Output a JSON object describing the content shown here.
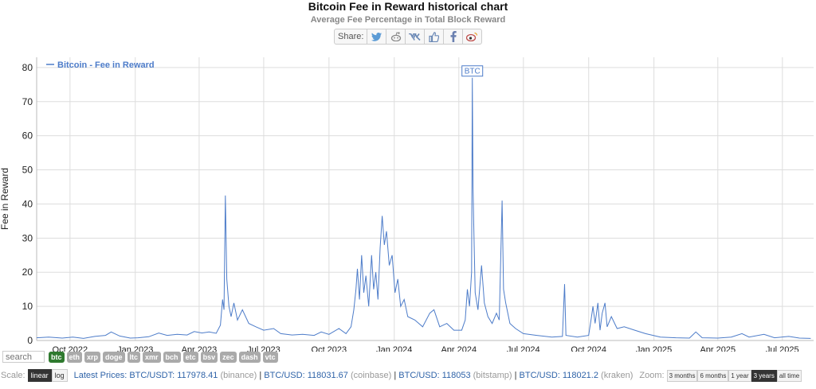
{
  "header": {
    "title": "Bitcoin Fee in Reward historical chart",
    "subtitle": "Average Fee Percentage in Total Block Reward",
    "share_label": "Share:",
    "share_icons": [
      "twitter-icon",
      "reddit-icon",
      "vk-icon",
      "like-icon",
      "facebook-icon",
      "weibo-icon"
    ]
  },
  "chart_data": {
    "type": "line",
    "ylabel": "Fee in Reward",
    "xlabel": "",
    "ylim": [
      0,
      83
    ],
    "yticks": [
      0,
      10,
      20,
      30,
      40,
      50,
      60,
      70,
      80
    ],
    "xticks": [
      "Oct 2022",
      "Jan 2023",
      "Apr 2023",
      "Jul 2023",
      "Oct 2023",
      "Jan 2024",
      "Apr 2024",
      "Jul 2024",
      "Oct 2024",
      "Jan 2025",
      "Apr 2025",
      "Jul 2025"
    ],
    "grid": true,
    "legend": "top-left",
    "annotation": "BTC",
    "color": "#4d7cc9",
    "series": [
      {
        "name": "Bitcoin - Fee in Reward",
        "points": [
          [
            "2022-08-15",
            0.8
          ],
          [
            "2022-09-01",
            1.0
          ],
          [
            "2022-09-20",
            0.7
          ],
          [
            "2022-10-05",
            1.0
          ],
          [
            "2022-10-20",
            0.6
          ],
          [
            "2022-11-05",
            1.2
          ],
          [
            "2022-11-20",
            1.5
          ],
          [
            "2022-11-28",
            2.5
          ],
          [
            "2022-12-10",
            1.3
          ],
          [
            "2022-12-25",
            0.7
          ],
          [
            "2023-01-05",
            0.8
          ],
          [
            "2023-01-20",
            1.1
          ],
          [
            "2023-02-03",
            2.2
          ],
          [
            "2023-02-15",
            1.5
          ],
          [
            "2023-03-01",
            1.8
          ],
          [
            "2023-03-15",
            1.6
          ],
          [
            "2023-03-25",
            2.6
          ],
          [
            "2023-04-05",
            2.2
          ],
          [
            "2023-04-15",
            2.5
          ],
          [
            "2023-04-25",
            2.1
          ],
          [
            "2023-05-01",
            4.5
          ],
          [
            "2023-05-04",
            12.0
          ],
          [
            "2023-05-06",
            9.0
          ],
          [
            "2023-05-08",
            42.5
          ],
          [
            "2023-05-10",
            18.0
          ],
          [
            "2023-05-13",
            10.0
          ],
          [
            "2023-05-16",
            7.0
          ],
          [
            "2023-05-20",
            11.0
          ],
          [
            "2023-05-25",
            6.0
          ],
          [
            "2023-06-01",
            9.0
          ],
          [
            "2023-06-10",
            5.0
          ],
          [
            "2023-06-20",
            4.0
          ],
          [
            "2023-07-01",
            3.0
          ],
          [
            "2023-07-15",
            3.5
          ],
          [
            "2023-07-25",
            2.0
          ],
          [
            "2023-08-10",
            1.6
          ],
          [
            "2023-08-25",
            1.8
          ],
          [
            "2023-09-10",
            1.5
          ],
          [
            "2023-09-20",
            2.5
          ],
          [
            "2023-10-01",
            1.8
          ],
          [
            "2023-10-15",
            3.5
          ],
          [
            "2023-10-25",
            2.0
          ],
          [
            "2023-11-01",
            4.0
          ],
          [
            "2023-11-05",
            9.0
          ],
          [
            "2023-11-08",
            15.0
          ],
          [
            "2023-11-10",
            21.0
          ],
          [
            "2023-11-13",
            12.0
          ],
          [
            "2023-11-16",
            25.0
          ],
          [
            "2023-11-19",
            14.0
          ],
          [
            "2023-11-22",
            19.0
          ],
          [
            "2023-11-26",
            10.0
          ],
          [
            "2023-11-30",
            25.0
          ],
          [
            "2023-12-03",
            15.0
          ],
          [
            "2023-12-06",
            20.0
          ],
          [
            "2023-12-09",
            12.0
          ],
          [
            "2023-12-12",
            27.0
          ],
          [
            "2023-12-15",
            36.5
          ],
          [
            "2023-12-18",
            28.0
          ],
          [
            "2023-12-21",
            32.0
          ],
          [
            "2023-12-25",
            22.0
          ],
          [
            "2023-12-29",
            25.0
          ],
          [
            "2024-01-02",
            14.0
          ],
          [
            "2024-01-06",
            18.0
          ],
          [
            "2024-01-10",
            10.0
          ],
          [
            "2024-01-15",
            12.0
          ],
          [
            "2024-01-20",
            7.0
          ],
          [
            "2024-01-30",
            6.0
          ],
          [
            "2024-02-10",
            4.0
          ],
          [
            "2024-02-20",
            8.0
          ],
          [
            "2024-02-26",
            9.0
          ],
          [
            "2024-03-05",
            4.0
          ],
          [
            "2024-03-15",
            5.0
          ],
          [
            "2024-03-25",
            3.0
          ],
          [
            "2024-04-05",
            3.0
          ],
          [
            "2024-04-10",
            6.0
          ],
          [
            "2024-04-13",
            15.0
          ],
          [
            "2024-04-16",
            10.0
          ],
          [
            "2024-04-19",
            20.0
          ],
          [
            "2024-04-20",
            77.0
          ],
          [
            "2024-04-21",
            45.0
          ],
          [
            "2024-04-22",
            34.0
          ],
          [
            "2024-04-24",
            14.0
          ],
          [
            "2024-04-28",
            9.0
          ],
          [
            "2024-05-03",
            22.0
          ],
          [
            "2024-05-07",
            11.0
          ],
          [
            "2024-05-12",
            7.0
          ],
          [
            "2024-05-18",
            5.0
          ],
          [
            "2024-05-24",
            8.0
          ],
          [
            "2024-05-28",
            6.0
          ],
          [
            "2024-06-01",
            41.0
          ],
          [
            "2024-06-03",
            15.0
          ],
          [
            "2024-06-06",
            11.0
          ],
          [
            "2024-06-12",
            5.0
          ],
          [
            "2024-06-20",
            3.5
          ],
          [
            "2024-07-01",
            2.0
          ],
          [
            "2024-07-20",
            1.5
          ],
          [
            "2024-08-10",
            1.0
          ],
          [
            "2024-08-25",
            1.2
          ],
          [
            "2024-08-28",
            16.5
          ],
          [
            "2024-08-30",
            1.5
          ],
          [
            "2024-09-15",
            1.0
          ],
          [
            "2024-10-01",
            1.5
          ],
          [
            "2024-10-05",
            7.0
          ],
          [
            "2024-10-07",
            10.0
          ],
          [
            "2024-10-10",
            5.0
          ],
          [
            "2024-10-14",
            11.0
          ],
          [
            "2024-10-17",
            3.0
          ],
          [
            "2024-10-20",
            8.0
          ],
          [
            "2024-10-24",
            11.0
          ],
          [
            "2024-10-27",
            4.0
          ],
          [
            "2024-11-02",
            7.0
          ],
          [
            "2024-11-10",
            3.5
          ],
          [
            "2024-11-20",
            4.0
          ],
          [
            "2024-12-05",
            3.0
          ],
          [
            "2024-12-20",
            2.0
          ],
          [
            "2025-01-10",
            1.0
          ],
          [
            "2025-02-01",
            0.8
          ],
          [
            "2025-02-20",
            0.7
          ],
          [
            "2025-03-01",
            2.5
          ],
          [
            "2025-03-10",
            0.8
          ],
          [
            "2025-04-01",
            0.7
          ],
          [
            "2025-04-20",
            1.0
          ],
          [
            "2025-05-05",
            2.0
          ],
          [
            "2025-05-15",
            1.0
          ],
          [
            "2025-06-05",
            1.8
          ],
          [
            "2025-06-20",
            0.8
          ],
          [
            "2025-07-10",
            1.2
          ],
          [
            "2025-07-25",
            0.7
          ],
          [
            "2025-08-10",
            0.6
          ]
        ]
      }
    ]
  },
  "controls": {
    "search_placeholder": "search",
    "coins": [
      "btc",
      "eth",
      "xrp",
      "doge",
      "ltc",
      "xmr",
      "bch",
      "etc",
      "bsv",
      "zec",
      "dash",
      "vtc"
    ],
    "active_coin": "btc",
    "scale_label": "Scale:",
    "scale_linear": "linear",
    "scale_log": "log",
    "prices_label": "Latest Prices:",
    "prices": [
      {
        "pair": "BTC/USDT:",
        "value": "117978.41",
        "source": "(binance)"
      },
      {
        "pair": "BTC/USD:",
        "value": "118031.67",
        "source": "(coinbase)"
      },
      {
        "pair": "BTC/USD:",
        "value": "118053",
        "source": "(bitstamp)"
      },
      {
        "pair": "BTC/USD:",
        "value": "118021.2",
        "source": "(kraken)"
      }
    ],
    "zoom_label": "Zoom:",
    "zoom_options": [
      "3 months",
      "6 months",
      "1 year",
      "3 years",
      "all time"
    ],
    "zoom_active": "3 years"
  }
}
